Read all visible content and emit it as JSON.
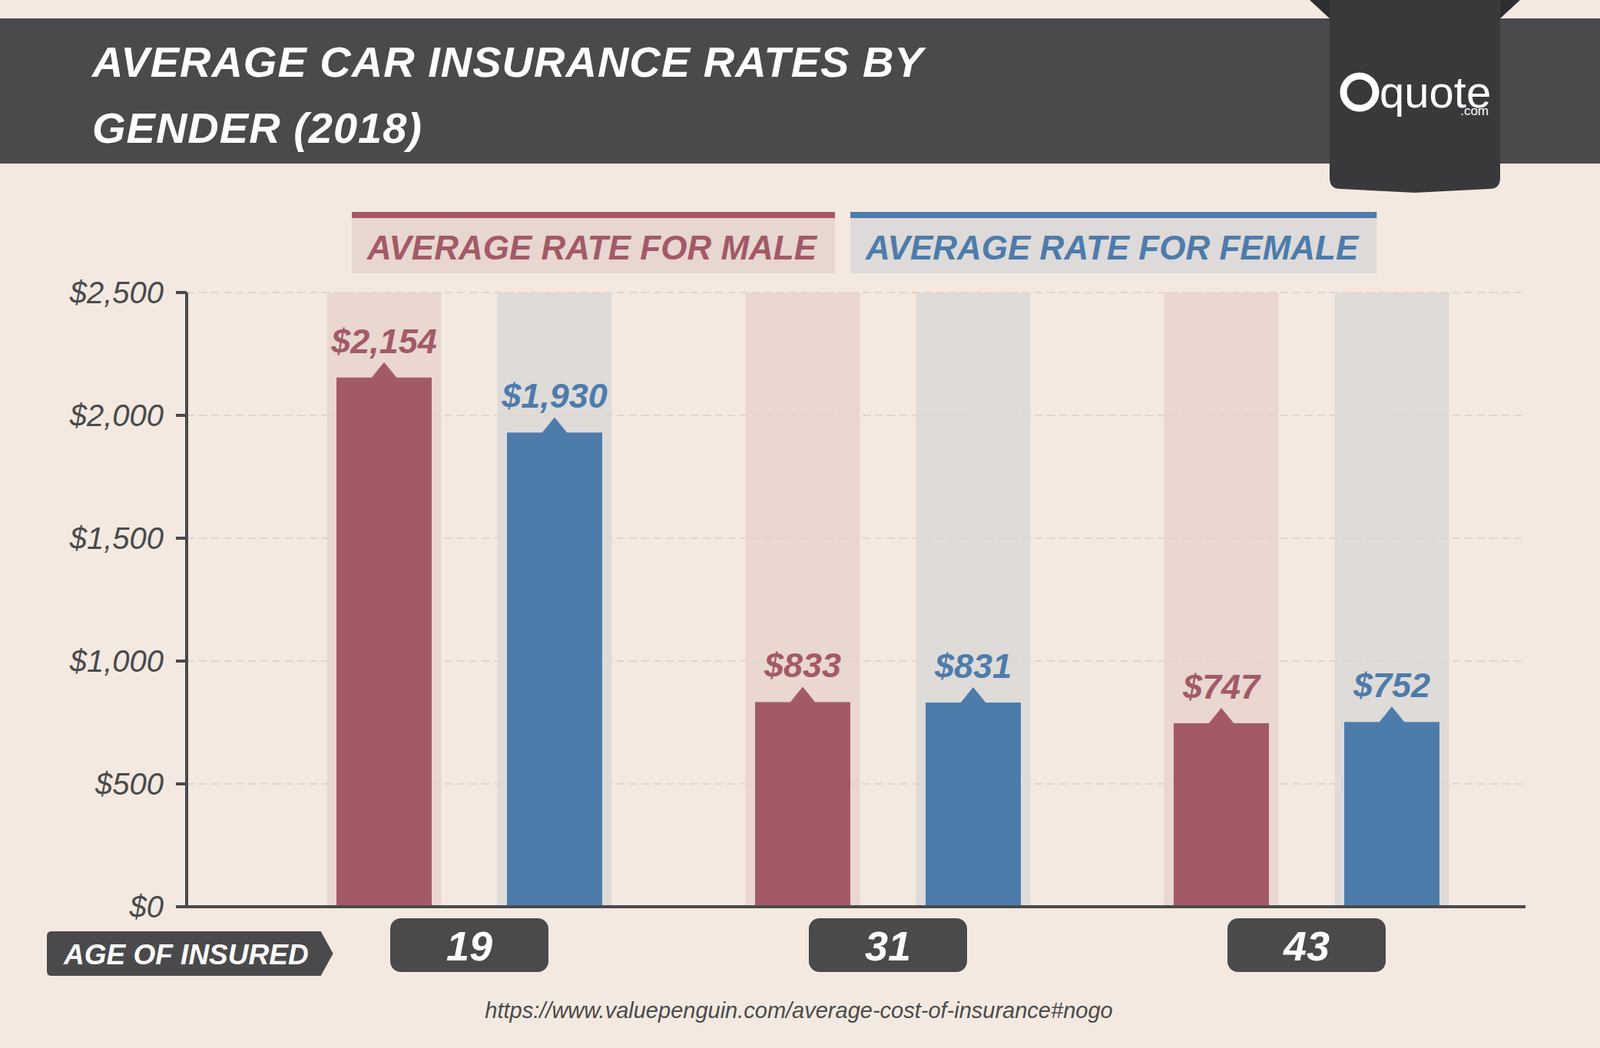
{
  "chart_data": {
    "type": "bar",
    "title": "AVERAGE CAR INSURANCE RATES BY GENDER (2018)",
    "xlabel": "AGE OF INSURED",
    "source": "https://www.valuepenguin.com/average-cost-of-insurance#nogo",
    "logo": "quote",
    "logo_suffix": ".com",
    "categories": [
      "19",
      "31",
      "43"
    ],
    "series": [
      {
        "name": "AVERAGE RATE FOR MALE",
        "color": "#a35a66",
        "values": [
          2154,
          833,
          747
        ],
        "value_labels": [
          "$2,154",
          "$833",
          "$747"
        ]
      },
      {
        "name": "AVERAGE RATE FOR FEMALE",
        "color": "#4d7cab",
        "values": [
          1930,
          831,
          752
        ],
        "value_labels": [
          "$1,930",
          "$831",
          "$752"
        ]
      }
    ],
    "ylim": [
      0,
      2500
    ],
    "yticks": [
      {
        "value": 0,
        "label": "$0"
      },
      {
        "value": 500,
        "label": "$500"
      },
      {
        "value": 1000,
        "label": "$1,000"
      },
      {
        "value": 1500,
        "label": "$1,500"
      },
      {
        "value": 2000,
        "label": "$2,000"
      },
      {
        "value": 2500,
        "label": "$2,500"
      }
    ],
    "grid": true,
    "legend": "top",
    "data_labels": true
  }
}
